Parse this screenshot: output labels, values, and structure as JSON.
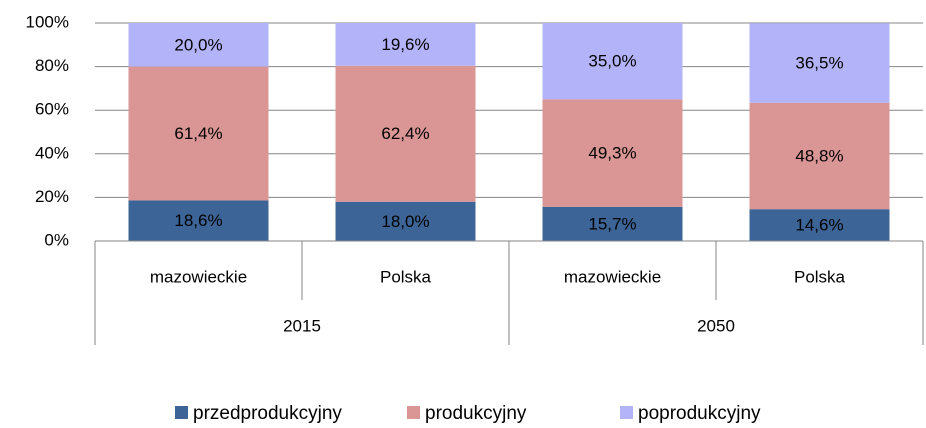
{
  "chart_data": {
    "type": "stacked_bar",
    "categories": [
      "mazowieckie",
      "Polska",
      "mazowieckie",
      "Polska"
    ],
    "groups": [
      "2015",
      "2050"
    ],
    "series": [
      {
        "name": "przedprodukcyjny",
        "color": "#3c6496",
        "values": [
          18.6,
          18.0,
          15.7,
          14.6
        ],
        "value_labels": [
          "18,6%",
          "18,0%",
          "15,7%",
          "14,6%"
        ]
      },
      {
        "name": "produkcyjny",
        "color": "#d99694",
        "values": [
          61.4,
          62.4,
          49.3,
          48.8
        ],
        "value_labels": [
          "61,4%",
          "62,4%",
          "49,3%",
          "48,8%"
        ]
      },
      {
        "name": "poprodukcyjny",
        "color": "#b3b3f9",
        "values": [
          20.0,
          19.6,
          35.0,
          36.5
        ],
        "value_labels": [
          "20,0%",
          "19,6%",
          "35,0%",
          "36,5%"
        ]
      }
    ],
    "ylim": [
      0,
      100
    ],
    "yticks": [
      {
        "value": 0,
        "label": "0%"
      },
      {
        "value": 20,
        "label": "20%"
      },
      {
        "value": 40,
        "label": "40%"
      },
      {
        "value": 60,
        "label": "60%"
      },
      {
        "value": 80,
        "label": "80%"
      },
      {
        "value": 100,
        "label": "100%"
      }
    ],
    "grid": true,
    "legend": "bottom"
  }
}
